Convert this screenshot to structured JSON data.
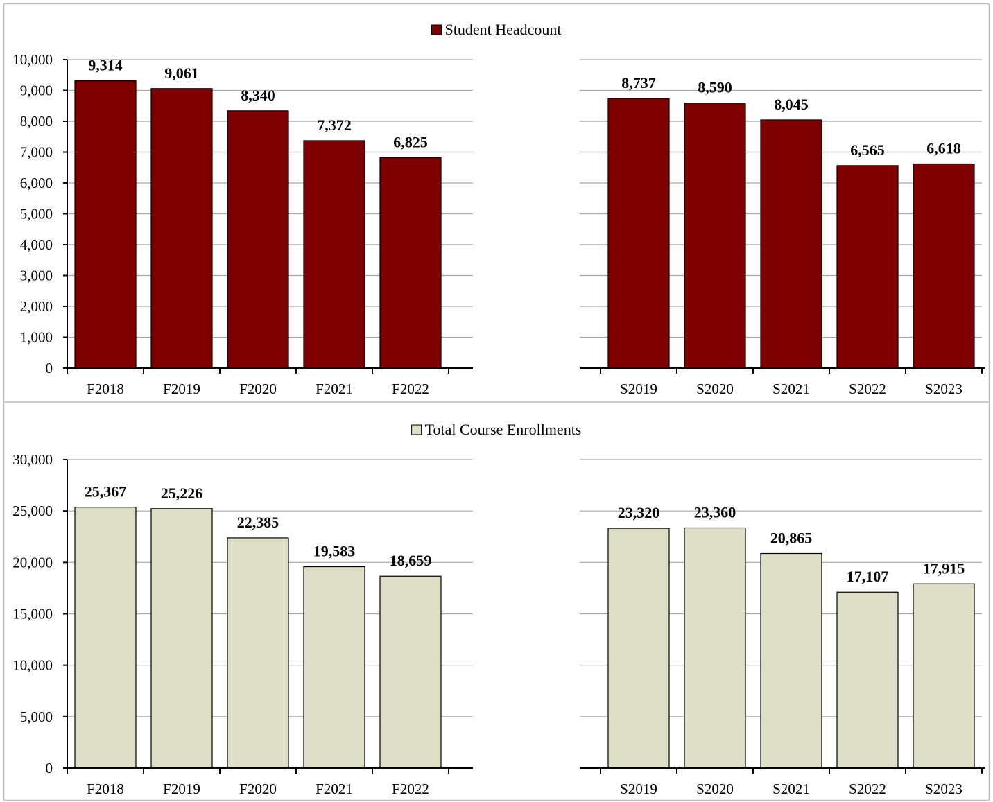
{
  "chart_data": [
    {
      "type": "bar",
      "legend": "Student Headcount",
      "color": "#7f0000",
      "ylim": [
        0,
        10000
      ],
      "yticks": [
        "0",
        "1,000",
        "2,000",
        "3,000",
        "4,000",
        "5,000",
        "6,000",
        "7,000",
        "8,000",
        "9,000",
        "10,000"
      ],
      "grid": true,
      "legend_position": "top-center",
      "panels": [
        {
          "categories": [
            "F2018",
            "F2019",
            "F2020",
            "F2021",
            "F2022"
          ],
          "values": [
            9314,
            9061,
            8340,
            7372,
            6825
          ],
          "labels": [
            "9,314",
            "9,061",
            "8,340",
            "7,372",
            "6,825"
          ]
        },
        {
          "categories": [
            "S2019",
            "S2020",
            "S2021",
            "S2022",
            "S2023"
          ],
          "values": [
            8737,
            8590,
            8045,
            6565,
            6618
          ],
          "labels": [
            "8,737",
            "8,590",
            "8,045",
            "6,565",
            "6,618"
          ]
        }
      ]
    },
    {
      "type": "bar",
      "legend": "Total Course Enrollments",
      "color": "#dedec6",
      "ylim": [
        0,
        30000
      ],
      "yticks": [
        "0",
        "5,000",
        "10,000",
        "15,000",
        "20,000",
        "25,000",
        "30,000"
      ],
      "grid": true,
      "legend_position": "top-center",
      "panels": [
        {
          "categories": [
            "F2018",
            "F2019",
            "F2020",
            "F2021",
            "F2022"
          ],
          "values": [
            25367,
            25226,
            22385,
            19583,
            18659
          ],
          "labels": [
            "25,367",
            "25,226",
            "22,385",
            "19,583",
            "18,659"
          ]
        },
        {
          "categories": [
            "S2019",
            "S2020",
            "S2021",
            "S2022",
            "S2023"
          ],
          "values": [
            23320,
            23360,
            20865,
            17107,
            17915
          ],
          "labels": [
            "23,320",
            "23,360",
            "20,865",
            "17,107",
            "17,915"
          ]
        }
      ]
    }
  ]
}
